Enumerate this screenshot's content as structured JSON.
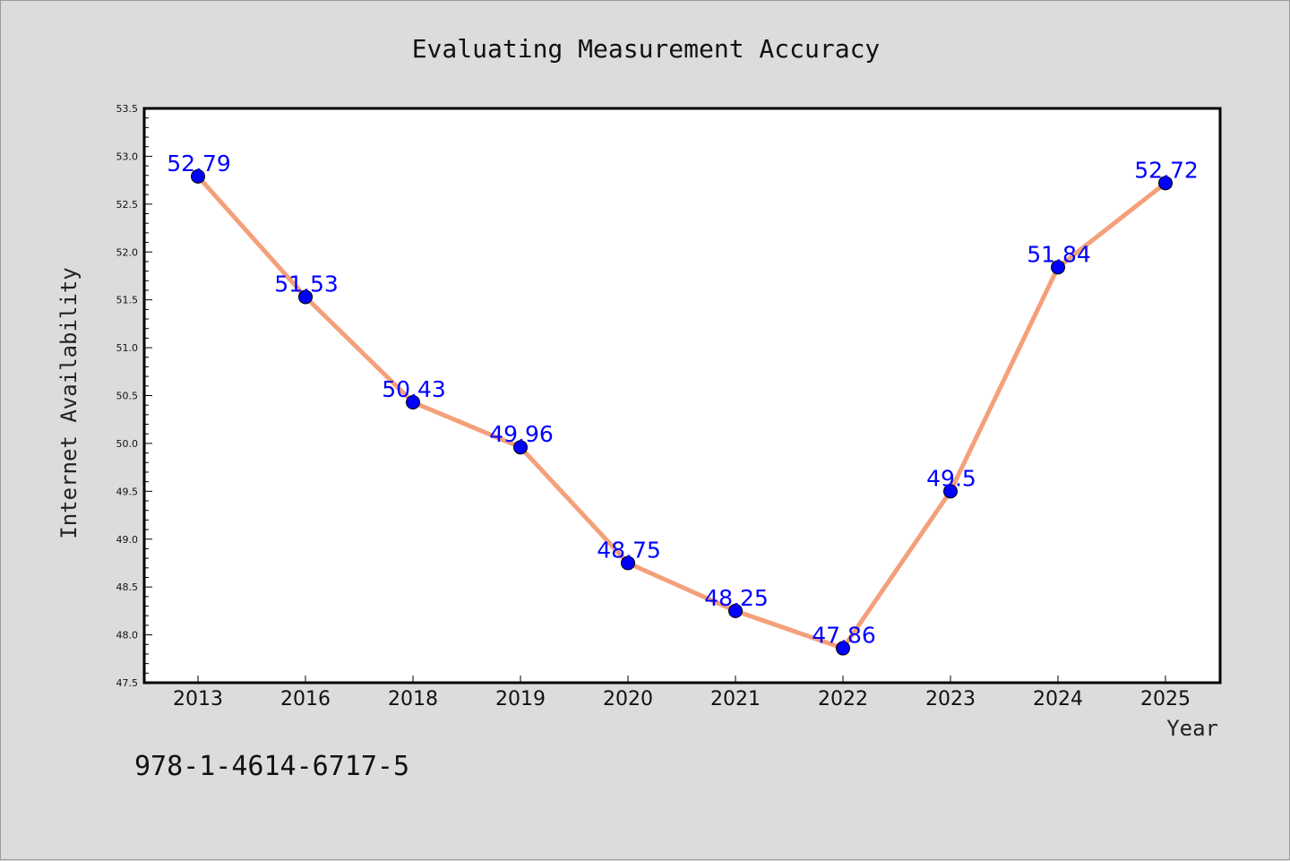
{
  "chart_data": {
    "type": "line",
    "title": "Evaluating Measurement Accuracy",
    "xlabel": "Year",
    "ylabel": "Internet Availability",
    "categories": [
      "2013",
      "2016",
      "2018",
      "2019",
      "2020",
      "2021",
      "2022",
      "2023",
      "2024",
      "2025"
    ],
    "series": [
      {
        "values": [
          52.79,
          51.53,
          50.43,
          49.96,
          48.75,
          48.25,
          47.86,
          49.5,
          51.84,
          52.72
        ],
        "line_color": "#f4a07a",
        "marker_color": "#0000ff"
      }
    ],
    "data_labels": [
      "52.79",
      "51.53",
      "50.43",
      "49.96",
      "48.75",
      "48.25",
      "47.86",
      "49.5",
      "51.84",
      "52.72"
    ],
    "ylim": [
      47.5,
      53.5
    ],
    "yticks": [
      "47.5",
      "48.0",
      "48.5",
      "49.0",
      "49.5",
      "50.0",
      "50.5",
      "51.0",
      "51.5",
      "52.0",
      "52.5",
      "53.0",
      "53.5"
    ],
    "grid": false,
    "legend": "none"
  },
  "footnote": "978-1-4614-6717-5",
  "colors": {
    "background": "#dcdcdc",
    "plot_background": "#ffffff",
    "line": "#f4a07a",
    "marker": "#0000ff",
    "data_label": "#0000ff"
  }
}
